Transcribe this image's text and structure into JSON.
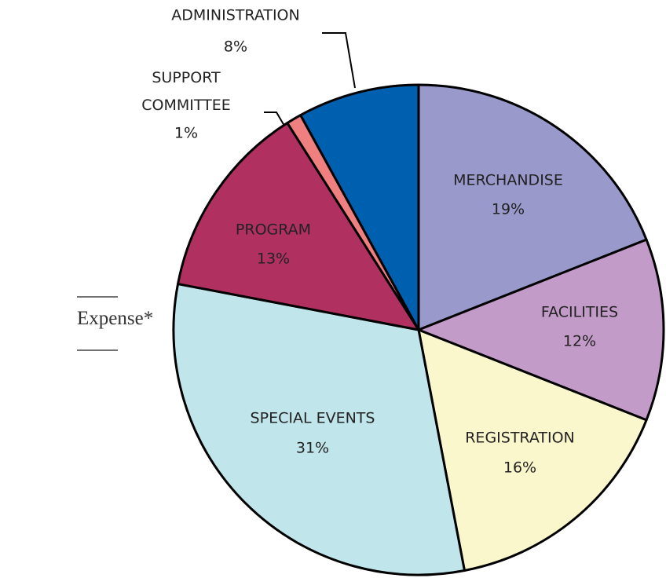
{
  "chart_data": {
    "type": "pie",
    "title": "Expense*",
    "categories": [
      "MERCHANDISE",
      "FACILITIES",
      "REGISTRATION",
      "SPECIAL EVENTS",
      "PROGRAM",
      "SUPPORT COMMITTEE",
      "ADMINISTRATION"
    ],
    "values": [
      19,
      12,
      16,
      31,
      13,
      1,
      8
    ],
    "value_labels": [
      "19%",
      "12%",
      "16%",
      "31%",
      "13%",
      "1%",
      "8%"
    ],
    "colors": [
      "#9999cc",
      "#c39bc8",
      "#fbf7cc",
      "#c0e6ec",
      "#b03060",
      "#f08080",
      "#0060b0"
    ]
  }
}
